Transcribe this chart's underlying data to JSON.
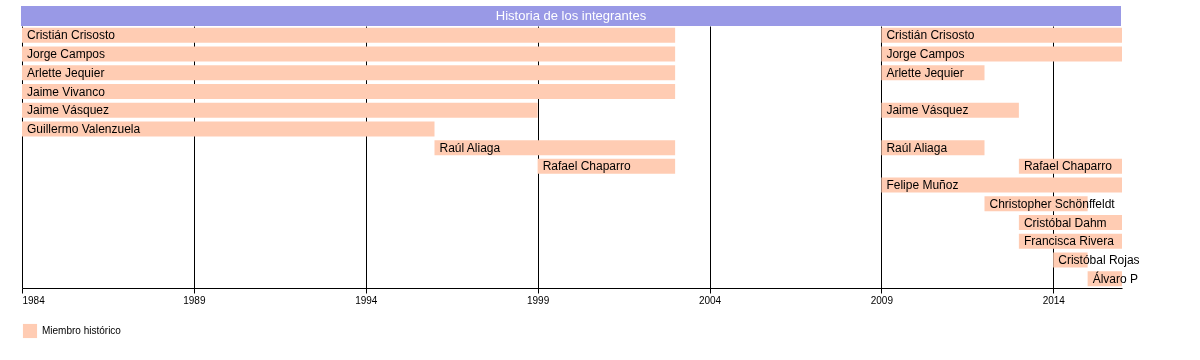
{
  "chart_data": {
    "type": "bar",
    "orientation": "horizontal",
    "title": "Historia de los integrantes",
    "categories": [
      null,
      null,
      null,
      null,
      null,
      null,
      null,
      null,
      null,
      null,
      null,
      null,
      null,
      null
    ],
    "series": [
      {
        "name": "Miembro histórico",
        "color": "#ffccb3",
        "base": [
          1984,
          1984,
          1984,
          1984,
          1984,
          1984,
          1996,
          1999,
          null,
          null,
          null,
          null,
          null,
          null
        ],
        "values": [
          19,
          19,
          19,
          19,
          15,
          12,
          7,
          4,
          null,
          null,
          null,
          null,
          null,
          null
        ],
        "value_labels": [
          "Cristián Crisosto",
          "Jorge Campos",
          "Arlette Jequier",
          "Jaime Vivanco",
          "Jaime Vásquez",
          "Guillermo Valenzuela",
          "Raúl Aliaga",
          "Rafael Chaparro",
          null,
          null,
          null,
          null,
          null,
          null
        ]
      },
      {
        "color": "#ffccb3",
        "base": [
          2009,
          2009,
          2009,
          null,
          2009,
          null,
          2009,
          2013,
          2009,
          2012,
          2013,
          2013,
          2014,
          2015
        ],
        "values": [
          7,
          7,
          3,
          null,
          4,
          null,
          3,
          3,
          7,
          3,
          3,
          3,
          1,
          1
        ],
        "value_labels": [
          "Cristián Crisosto",
          "Jorge Campos",
          "Arlette Jequier",
          null,
          "Jaime Vásquez",
          null,
          "Raúl Aliaga",
          "Rafael Chaparro",
          "Felipe Muñoz",
          "Christopher Schönffeldt",
          "Cristóbal Dahm",
          "Francisca Rivera",
          "Cristóbal Rojas",
          "Álvaro P"
        ]
      }
    ],
    "xlim": [
      1984,
      2016
    ],
    "xticks": [
      1984,
      1989,
      1994,
      1999,
      2004,
      2009,
      2014
    ],
    "grid": "x",
    "legend": "bottom left",
    "tick_labels": "x"
  }
}
